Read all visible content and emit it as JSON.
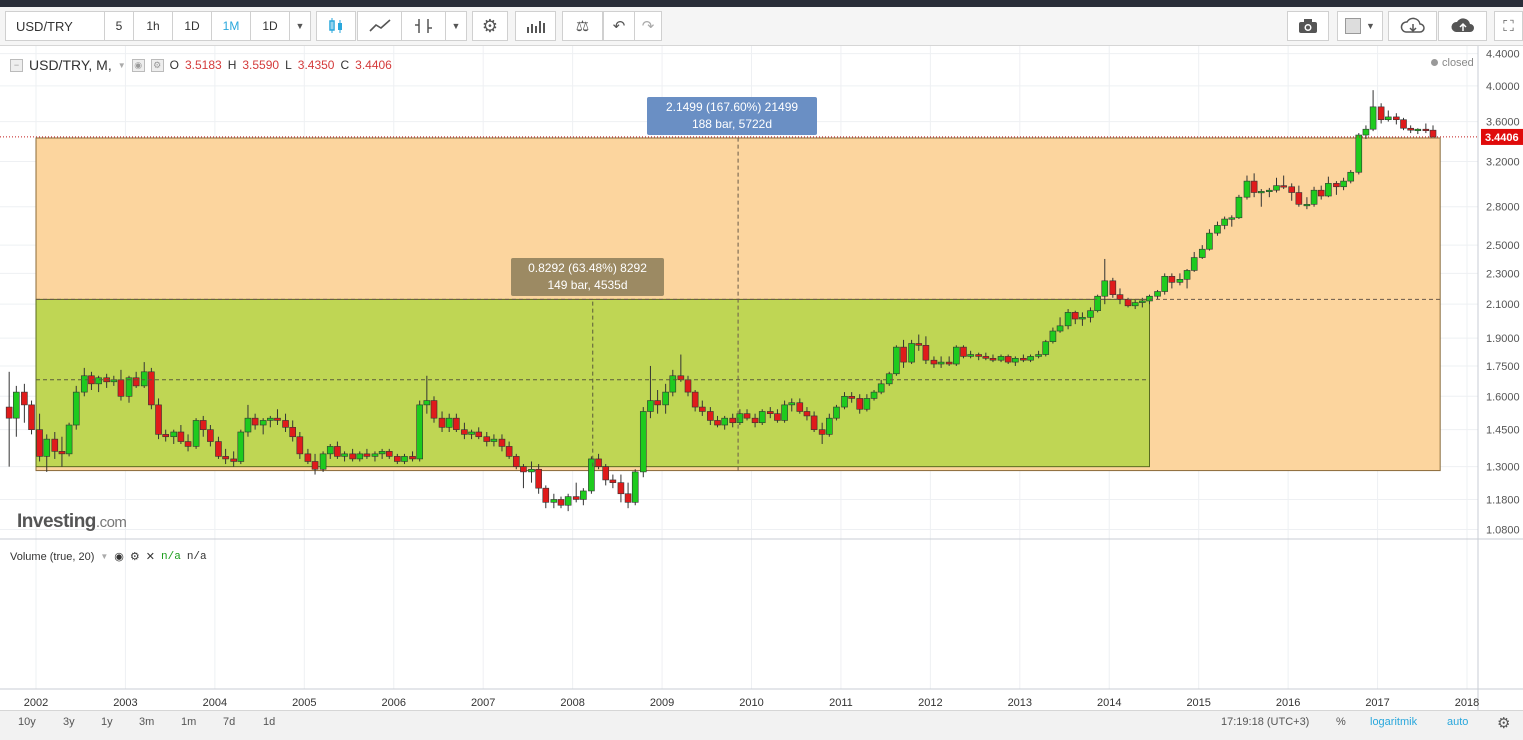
{
  "toolbar": {
    "symbol": "USD/TRY",
    "intervals": [
      "5",
      "1h",
      "1D",
      "1M",
      "1D"
    ],
    "active_interval": "1M"
  },
  "legend": {
    "symbol_label": "USD/TRY, M,",
    "o_label": "O",
    "o_value": "3.5183",
    "h_label": "H",
    "h_value": "3.5590",
    "l_label": "L",
    "l_value": "3.4350",
    "c_label": "C",
    "c_value": "3.4406"
  },
  "status": "closed",
  "volume": {
    "label": "Volume (true, 20)",
    "value1": "n/a",
    "value2": "n/a"
  },
  "watermark": {
    "main": "Investing",
    "suffix": ".com"
  },
  "measures": [
    {
      "line1": "2.1499 (167.60%) 21499",
      "line2": "188 bar, 5722d"
    },
    {
      "line1": "0.8292 (63.48%) 8292",
      "line2": "149 bar, 4535d"
    }
  ],
  "chart_data": {
    "type": "candlestick",
    "scale": "log",
    "y_ticks": [
      "4.4000",
      "4.0000",
      "3.6000",
      "3.2000",
      "2.8000",
      "2.5000",
      "2.3000",
      "2.1000",
      "1.9000",
      "1.7500",
      "1.6000",
      "1.4500",
      "1.3000",
      "1.1800",
      "1.0800"
    ],
    "x_ticks": [
      "2002",
      "2003",
      "2004",
      "2005",
      "2006",
      "2007",
      "2008",
      "2009",
      "2010",
      "2011",
      "2012",
      "2013",
      "2014",
      "2015",
      "2016",
      "2017",
      "2018"
    ],
    "last_price": "3.4406",
    "ylim": [
      1.05,
      4.5
    ],
    "xlim": [
      2002,
      2018.1
    ],
    "ranges": [
      {
        "x_start": 2002.0,
        "x_end": 2017.7,
        "y_low": 1.285,
        "y_high": 3.43
      },
      {
        "x_start": 2002.0,
        "x_end": 2014.45,
        "y_low": 1.3,
        "y_high": 2.13
      }
    ],
    "candles": [
      [
        2001.7,
        1.55,
        1.72,
        1.3,
        1.5
      ],
      [
        2001.78,
        1.5,
        1.65,
        1.42,
        1.62
      ],
      [
        2001.87,
        1.62,
        1.66,
        1.48,
        1.56
      ],
      [
        2001.95,
        1.56,
        1.58,
        1.43,
        1.45
      ],
      [
        2002.04,
        1.45,
        1.52,
        1.32,
        1.34
      ],
      [
        2002.12,
        1.34,
        1.43,
        1.28,
        1.41
      ],
      [
        2002.21,
        1.41,
        1.44,
        1.33,
        1.36
      ],
      [
        2002.29,
        1.36,
        1.42,
        1.3,
        1.35
      ],
      [
        2002.37,
        1.35,
        1.48,
        1.34,
        1.47
      ],
      [
        2002.45,
        1.47,
        1.65,
        1.45,
        1.62
      ],
      [
        2002.54,
        1.62,
        1.74,
        1.6,
        1.7
      ],
      [
        2002.62,
        1.7,
        1.72,
        1.63,
        1.66
      ],
      [
        2002.7,
        1.66,
        1.7,
        1.62,
        1.69
      ],
      [
        2002.79,
        1.69,
        1.71,
        1.64,
        1.67
      ],
      [
        2002.87,
        1.67,
        1.7,
        1.65,
        1.68
      ],
      [
        2002.95,
        1.68,
        1.73,
        1.58,
        1.6
      ],
      [
        2003.04,
        1.6,
        1.7,
        1.57,
        1.69
      ],
      [
        2003.12,
        1.69,
        1.72,
        1.64,
        1.65
      ],
      [
        2003.21,
        1.65,
        1.77,
        1.64,
        1.72
      ],
      [
        2003.29,
        1.72,
        1.74,
        1.54,
        1.56
      ],
      [
        2003.37,
        1.56,
        1.59,
        1.41,
        1.43
      ],
      [
        2003.45,
        1.43,
        1.45,
        1.4,
        1.42
      ],
      [
        2003.54,
        1.42,
        1.45,
        1.39,
        1.44
      ],
      [
        2003.62,
        1.44,
        1.47,
        1.39,
        1.4
      ],
      [
        2003.7,
        1.4,
        1.43,
        1.36,
        1.38
      ],
      [
        2003.79,
        1.38,
        1.5,
        1.37,
        1.49
      ],
      [
        2003.87,
        1.49,
        1.51,
        1.42,
        1.45
      ],
      [
        2003.95,
        1.45,
        1.47,
        1.38,
        1.4
      ],
      [
        2004.04,
        1.4,
        1.42,
        1.33,
        1.34
      ],
      [
        2004.12,
        1.34,
        1.37,
        1.31,
        1.33
      ],
      [
        2004.21,
        1.33,
        1.36,
        1.3,
        1.32
      ],
      [
        2004.29,
        1.32,
        1.45,
        1.31,
        1.44
      ],
      [
        2004.37,
        1.44,
        1.56,
        1.42,
        1.5
      ],
      [
        2004.45,
        1.5,
        1.52,
        1.45,
        1.47
      ],
      [
        2004.54,
        1.47,
        1.5,
        1.43,
        1.49
      ],
      [
        2004.62,
        1.49,
        1.51,
        1.46,
        1.5
      ],
      [
        2004.7,
        1.5,
        1.54,
        1.47,
        1.49
      ],
      [
        2004.79,
        1.49,
        1.52,
        1.44,
        1.46
      ],
      [
        2004.87,
        1.46,
        1.49,
        1.4,
        1.42
      ],
      [
        2004.95,
        1.42,
        1.44,
        1.33,
        1.35
      ],
      [
        2005.04,
        1.35,
        1.37,
        1.31,
        1.32
      ],
      [
        2005.12,
        1.32,
        1.35,
        1.27,
        1.29
      ],
      [
        2005.21,
        1.29,
        1.36,
        1.28,
        1.35
      ],
      [
        2005.29,
        1.35,
        1.39,
        1.33,
        1.38
      ],
      [
        2005.37,
        1.38,
        1.4,
        1.33,
        1.34
      ],
      [
        2005.45,
        1.34,
        1.36,
        1.32,
        1.35
      ],
      [
        2005.54,
        1.35,
        1.37,
        1.32,
        1.33
      ],
      [
        2005.62,
        1.33,
        1.36,
        1.32,
        1.35
      ],
      [
        2005.7,
        1.35,
        1.37,
        1.33,
        1.34
      ],
      [
        2005.79,
        1.34,
        1.36,
        1.32,
        1.35
      ],
      [
        2005.87,
        1.35,
        1.37,
        1.33,
        1.36
      ],
      [
        2005.95,
        1.36,
        1.37,
        1.33,
        1.34
      ],
      [
        2006.04,
        1.34,
        1.35,
        1.31,
        1.32
      ],
      [
        2006.12,
        1.32,
        1.35,
        1.31,
        1.34
      ],
      [
        2006.21,
        1.34,
        1.36,
        1.32,
        1.33
      ],
      [
        2006.29,
        1.33,
        1.58,
        1.32,
        1.56
      ],
      [
        2006.37,
        1.56,
        1.7,
        1.52,
        1.58
      ],
      [
        2006.45,
        1.58,
        1.6,
        1.48,
        1.5
      ],
      [
        2006.54,
        1.5,
        1.53,
        1.44,
        1.46
      ],
      [
        2006.62,
        1.46,
        1.52,
        1.44,
        1.5
      ],
      [
        2006.7,
        1.5,
        1.52,
        1.44,
        1.45
      ],
      [
        2006.79,
        1.45,
        1.48,
        1.41,
        1.43
      ],
      [
        2006.87,
        1.43,
        1.45,
        1.41,
        1.44
      ],
      [
        2006.95,
        1.44,
        1.46,
        1.41,
        1.42
      ],
      [
        2007.04,
        1.42,
        1.44,
        1.38,
        1.4
      ],
      [
        2007.12,
        1.4,
        1.43,
        1.38,
        1.41
      ],
      [
        2007.21,
        1.41,
        1.43,
        1.36,
        1.38
      ],
      [
        2007.29,
        1.38,
        1.4,
        1.33,
        1.34
      ],
      [
        2007.37,
        1.34,
        1.35,
        1.29,
        1.3
      ],
      [
        2007.45,
        1.3,
        1.31,
        1.22,
        1.28
      ],
      [
        2007.54,
        1.28,
        1.32,
        1.24,
        1.29
      ],
      [
        2007.62,
        1.29,
        1.31,
        1.2,
        1.22
      ],
      [
        2007.7,
        1.22,
        1.23,
        1.15,
        1.17
      ],
      [
        2007.79,
        1.17,
        1.2,
        1.15,
        1.18
      ],
      [
        2007.87,
        1.18,
        1.19,
        1.15,
        1.16
      ],
      [
        2007.95,
        1.16,
        1.2,
        1.14,
        1.19
      ],
      [
        2008.04,
        1.19,
        1.24,
        1.17,
        1.18
      ],
      [
        2008.12,
        1.18,
        1.22,
        1.16,
        1.21
      ],
      [
        2008.21,
        1.21,
        1.34,
        1.2,
        1.33
      ],
      [
        2008.29,
        1.33,
        1.35,
        1.29,
        1.3
      ],
      [
        2008.37,
        1.3,
        1.31,
        1.23,
        1.25
      ],
      [
        2008.45,
        1.25,
        1.27,
        1.22,
        1.24
      ],
      [
        2008.54,
        1.24,
        1.27,
        1.17,
        1.2
      ],
      [
        2008.62,
        1.2,
        1.24,
        1.15,
        1.17
      ],
      [
        2008.7,
        1.17,
        1.29,
        1.16,
        1.28
      ],
      [
        2008.79,
        1.28,
        1.55,
        1.26,
        1.53
      ],
      [
        2008.87,
        1.53,
        1.75,
        1.5,
        1.58
      ],
      [
        2008.95,
        1.58,
        1.63,
        1.52,
        1.56
      ],
      [
        2009.04,
        1.56,
        1.66,
        1.52,
        1.62
      ],
      [
        2009.12,
        1.62,
        1.73,
        1.6,
        1.7
      ],
      [
        2009.21,
        1.7,
        1.81,
        1.67,
        1.68
      ],
      [
        2009.29,
        1.68,
        1.7,
        1.6,
        1.62
      ],
      [
        2009.37,
        1.62,
        1.63,
        1.53,
        1.55
      ],
      [
        2009.45,
        1.55,
        1.58,
        1.51,
        1.53
      ],
      [
        2009.54,
        1.53,
        1.55,
        1.47,
        1.49
      ],
      [
        2009.62,
        1.49,
        1.51,
        1.46,
        1.47
      ],
      [
        2009.7,
        1.47,
        1.51,
        1.45,
        1.5
      ],
      [
        2009.79,
        1.5,
        1.52,
        1.46,
        1.48
      ],
      [
        2009.87,
        1.48,
        1.54,
        1.47,
        1.52
      ],
      [
        2009.95,
        1.52,
        1.54,
        1.49,
        1.5
      ],
      [
        2010.04,
        1.5,
        1.52,
        1.46,
        1.48
      ],
      [
        2010.12,
        1.48,
        1.54,
        1.47,
        1.53
      ],
      [
        2010.21,
        1.53,
        1.55,
        1.5,
        1.52
      ],
      [
        2010.29,
        1.52,
        1.54,
        1.48,
        1.49
      ],
      [
        2010.37,
        1.49,
        1.58,
        1.48,
        1.56
      ],
      [
        2010.45,
        1.56,
        1.59,
        1.53,
        1.57
      ],
      [
        2010.54,
        1.57,
        1.59,
        1.52,
        1.53
      ],
      [
        2010.62,
        1.53,
        1.55,
        1.49,
        1.51
      ],
      [
        2010.7,
        1.51,
        1.53,
        1.44,
        1.45
      ],
      [
        2010.79,
        1.45,
        1.48,
        1.39,
        1.43
      ],
      [
        2010.87,
        1.43,
        1.52,
        1.42,
        1.5
      ],
      [
        2010.95,
        1.5,
        1.56,
        1.49,
        1.55
      ],
      [
        2011.04,
        1.55,
        1.62,
        1.54,
        1.6
      ],
      [
        2011.12,
        1.6,
        1.62,
        1.57,
        1.59
      ],
      [
        2011.21,
        1.59,
        1.61,
        1.52,
        1.54
      ],
      [
        2011.29,
        1.54,
        1.61,
        1.53,
        1.59
      ],
      [
        2011.37,
        1.59,
        1.63,
        1.58,
        1.62
      ],
      [
        2011.45,
        1.62,
        1.68,
        1.61,
        1.66
      ],
      [
        2011.54,
        1.66,
        1.72,
        1.65,
        1.71
      ],
      [
        2011.62,
        1.71,
        1.86,
        1.7,
        1.85
      ],
      [
        2011.7,
        1.85,
        1.89,
        1.74,
        1.77
      ],
      [
        2011.79,
        1.77,
        1.89,
        1.76,
        1.87
      ],
      [
        2011.87,
        1.87,
        1.92,
        1.83,
        1.86
      ],
      [
        2011.95,
        1.86,
        1.91,
        1.76,
        1.78
      ],
      [
        2012.04,
        1.78,
        1.8,
        1.74,
        1.76
      ],
      [
        2012.12,
        1.76,
        1.8,
        1.74,
        1.77
      ],
      [
        2012.21,
        1.77,
        1.8,
        1.75,
        1.76
      ],
      [
        2012.29,
        1.76,
        1.86,
        1.75,
        1.85
      ],
      [
        2012.37,
        1.85,
        1.86,
        1.79,
        1.8
      ],
      [
        2012.45,
        1.8,
        1.83,
        1.79,
        1.81
      ],
      [
        2012.54,
        1.81,
        1.82,
        1.78,
        1.8
      ],
      [
        2012.62,
        1.8,
        1.82,
        1.78,
        1.79
      ],
      [
        2012.7,
        1.79,
        1.81,
        1.77,
        1.78
      ],
      [
        2012.79,
        1.78,
        1.81,
        1.77,
        1.8
      ],
      [
        2012.87,
        1.8,
        1.81,
        1.76,
        1.77
      ],
      [
        2012.95,
        1.77,
        1.8,
        1.75,
        1.79
      ],
      [
        2013.04,
        1.79,
        1.81,
        1.77,
        1.78
      ],
      [
        2013.12,
        1.78,
        1.81,
        1.77,
        1.8
      ],
      [
        2013.21,
        1.8,
        1.83,
        1.79,
        1.81
      ],
      [
        2013.29,
        1.81,
        1.89,
        1.8,
        1.88
      ],
      [
        2013.37,
        1.88,
        1.96,
        1.87,
        1.94
      ],
      [
        2013.45,
        1.94,
        2.02,
        1.93,
        1.97
      ],
      [
        2013.54,
        1.97,
        2.07,
        1.95,
        2.05
      ],
      [
        2013.62,
        2.05,
        2.06,
        1.98,
        2.01
      ],
      [
        2013.7,
        2.01,
        2.05,
        1.97,
        2.02
      ],
      [
        2013.79,
        2.02,
        2.08,
        1.99,
        2.06
      ],
      [
        2013.87,
        2.06,
        2.16,
        2.05,
        2.15
      ],
      [
        2013.95,
        2.15,
        2.4,
        2.1,
        2.25
      ],
      [
        2014.04,
        2.25,
        2.27,
        2.14,
        2.16
      ],
      [
        2014.12,
        2.16,
        2.2,
        2.1,
        2.13
      ],
      [
        2014.21,
        2.13,
        2.14,
        2.08,
        2.09
      ],
      [
        2014.29,
        2.09,
        2.13,
        2.07,
        2.11
      ],
      [
        2014.37,
        2.11,
        2.14,
        2.08,
        2.12
      ],
      [
        2014.45,
        2.12,
        2.16,
        2.1,
        2.15
      ],
      [
        2014.54,
        2.15,
        2.19,
        2.13,
        2.18
      ],
      [
        2014.62,
        2.18,
        2.3,
        2.16,
        2.28
      ],
      [
        2014.7,
        2.28,
        2.3,
        2.2,
        2.24
      ],
      [
        2014.79,
        2.24,
        2.3,
        2.22,
        2.26
      ],
      [
        2014.87,
        2.26,
        2.33,
        2.2,
        2.32
      ],
      [
        2014.95,
        2.32,
        2.45,
        2.31,
        2.41
      ],
      [
        2015.04,
        2.41,
        2.5,
        2.4,
        2.47
      ],
      [
        2015.12,
        2.47,
        2.62,
        2.46,
        2.59
      ],
      [
        2015.21,
        2.59,
        2.68,
        2.57,
        2.65
      ],
      [
        2015.29,
        2.65,
        2.72,
        2.62,
        2.7
      ],
      [
        2015.37,
        2.7,
        2.73,
        2.64,
        2.71
      ],
      [
        2015.45,
        2.71,
        2.9,
        2.7,
        2.88
      ],
      [
        2015.54,
        2.88,
        3.07,
        2.86,
        3.02
      ],
      [
        2015.62,
        3.02,
        3.09,
        2.88,
        2.92
      ],
      [
        2015.7,
        2.92,
        2.95,
        2.8,
        2.93
      ],
      [
        2015.79,
        2.93,
        2.96,
        2.88,
        2.94
      ],
      [
        2015.87,
        2.94,
        3.05,
        2.92,
        2.98
      ],
      [
        2015.95,
        2.98,
        3.07,
        2.95,
        2.97
      ],
      [
        2016.04,
        2.97,
        3.0,
        2.85,
        2.92
      ],
      [
        2016.12,
        2.92,
        2.98,
        2.8,
        2.82
      ],
      [
        2016.21,
        2.82,
        2.88,
        2.78,
        2.82
      ],
      [
        2016.29,
        2.82,
        2.97,
        2.8,
        2.94
      ],
      [
        2016.37,
        2.94,
        2.98,
        2.86,
        2.89
      ],
      [
        2016.45,
        2.89,
        3.06,
        2.88,
        3.0
      ],
      [
        2016.54,
        3.0,
        3.02,
        2.9,
        2.97
      ],
      [
        2016.62,
        2.97,
        3.05,
        2.94,
        3.02
      ],
      [
        2016.7,
        3.02,
        3.12,
        3.0,
        3.1
      ],
      [
        2016.79,
        3.1,
        3.48,
        3.08,
        3.46
      ],
      [
        2016.87,
        3.46,
        3.56,
        3.42,
        3.52
      ],
      [
        2016.95,
        3.52,
        3.95,
        3.5,
        3.76
      ],
      [
        2017.04,
        3.76,
        3.8,
        3.58,
        3.62
      ],
      [
        2017.12,
        3.62,
        3.72,
        3.6,
        3.65
      ],
      [
        2017.21,
        3.65,
        3.69,
        3.57,
        3.62
      ],
      [
        2017.29,
        3.62,
        3.64,
        3.51,
        3.53
      ],
      [
        2017.37,
        3.53,
        3.56,
        3.48,
        3.51
      ],
      [
        2017.45,
        3.51,
        3.53,
        3.47,
        3.52
      ],
      [
        2017.54,
        3.52,
        3.58,
        3.48,
        3.51
      ],
      [
        2017.62,
        3.51,
        3.56,
        3.44,
        3.44
      ]
    ]
  },
  "range_buttons": [
    "10y",
    "3y",
    "1y",
    "3m",
    "1m",
    "7d",
    "1d"
  ],
  "bottom": {
    "time": "17:19:18 (UTC+3)",
    "percent": "%",
    "log": "logaritmik",
    "auto": "auto"
  },
  "colors": {
    "up": "#1ecb1e",
    "down": "#e01b1b",
    "orange_zone": "#fcd59e",
    "green_zone": "#bfd654",
    "measure_blue": "#6a8fc4",
    "measure_brown": "#9c8a63",
    "accent": "#29a7dc"
  }
}
